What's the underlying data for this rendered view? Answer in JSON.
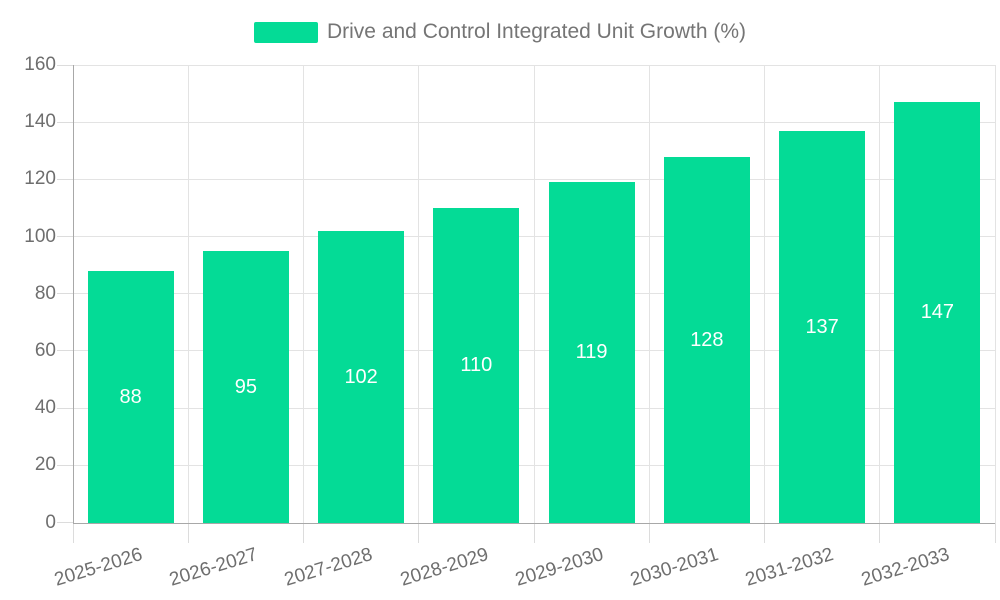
{
  "legend": {
    "label": "Drive and Control Integrated Unit Growth (%)"
  },
  "chart_data": {
    "type": "bar",
    "title": "Drive and Control Integrated Unit Growth (%)",
    "categories": [
      "2025-2026",
      "2026-2027",
      "2027-2028",
      "2028-2029",
      "2029-2030",
      "2030-2031",
      "2031-2032",
      "2032-2033"
    ],
    "values": [
      88,
      95,
      102,
      110,
      119,
      128,
      137,
      147
    ],
    "series": [
      {
        "name": "Drive and Control Integrated Unit Growth (%)",
        "values": [
          88,
          95,
          102,
          110,
          119,
          128,
          137,
          147
        ]
      }
    ],
    "xlabel": "",
    "ylabel": "",
    "ylim": [
      0,
      160
    ],
    "yticks": [
      0,
      20,
      40,
      60,
      80,
      100,
      120,
      140,
      160
    ],
    "grid": true,
    "legend_position": "top",
    "value_labels": "inside-center"
  },
  "colors": {
    "bar": "#04db96",
    "axis": "#a8a8a8",
    "grid": "#e3e3e3",
    "tick": "#dcdcdc",
    "text": "#6e6e6e",
    "legend_text": "#757575",
    "value_text": "#ffffff",
    "background": "#ffffff"
  }
}
